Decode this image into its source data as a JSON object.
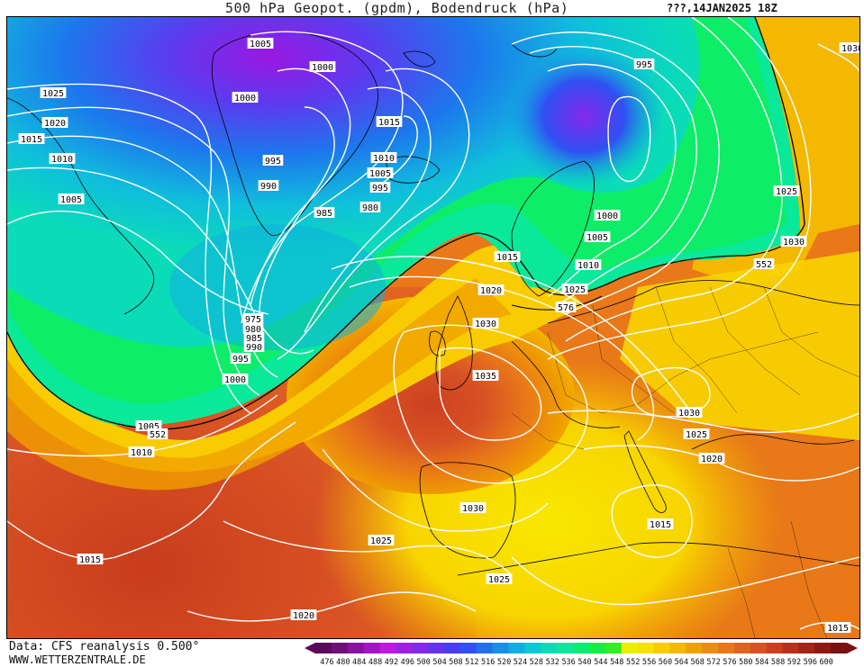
{
  "header": {
    "title": "500 hPa Geopot. (gpdm), Bodendruck (hPa)",
    "datetime": "???,14JAN2025 18Z"
  },
  "footer": {
    "data_source": "Data: CFS reanalysis 0.500°",
    "website": "WWW.WETTERZENTRALE.DE"
  },
  "colors": {
    "contour": "#ffffff",
    "coast": "#000000",
    "geopot_scale": [
      "#5a0a5a",
      "#6e0e78",
      "#8a10a0",
      "#a414c4",
      "#c018e0",
      "#a21ee6",
      "#8428ec",
      "#6632f0",
      "#4a3cf2",
      "#3050f2",
      "#2070ee",
      "#1890e8",
      "#10aee0",
      "#0ac8d4",
      "#0adcb8",
      "#0ae89a",
      "#08ec70",
      "#10f040",
      "#30f020",
      "#e8f000",
      "#f8e000",
      "#f8cc00",
      "#f4b800",
      "#f0a000",
      "#ec8c10",
      "#e87818",
      "#e06420",
      "#d85224",
      "#cc4020",
      "#b8301c",
      "#a42418",
      "#901814",
      "#7c1010"
    ]
  },
  "colorbar": {
    "ticks": [
      "476",
      "480",
      "484",
      "488",
      "492",
      "496",
      "500",
      "504",
      "508",
      "512",
      "516",
      "520",
      "524",
      "528",
      "532",
      "536",
      "540",
      "544",
      "548",
      "552",
      "556",
      "560",
      "564",
      "568",
      "572",
      "576",
      "580",
      "584",
      "588",
      "592",
      "596",
      "600"
    ]
  },
  "isobar_labels": [
    {
      "text": "1005"
    },
    {
      "text": "1000"
    },
    {
      "text": "1000"
    },
    {
      "text": "1015"
    },
    {
      "text": "1010"
    },
    {
      "text": "1005"
    },
    {
      "text": "995"
    },
    {
      "text": "995"
    },
    {
      "text": "990"
    },
    {
      "text": "985"
    },
    {
      "text": "980"
    },
    {
      "text": "1025"
    },
    {
      "text": "1020"
    },
    {
      "text": "1015"
    },
    {
      "text": "1010"
    },
    {
      "text": "1005"
    },
    {
      "text": "995"
    },
    {
      "text": "1000"
    },
    {
      "text": "1005"
    },
    {
      "text": "1010"
    },
    {
      "text": "1015"
    },
    {
      "text": "1020"
    },
    {
      "text": "1025"
    },
    {
      "text": "1030"
    },
    {
      "text": "1025"
    },
    {
      "text": "1030"
    },
    {
      "text": "552"
    },
    {
      "text": "576"
    },
    {
      "text": "975"
    },
    {
      "text": "980"
    },
    {
      "text": "985"
    },
    {
      "text": "990"
    },
    {
      "text": "995"
    },
    {
      "text": "1000"
    },
    {
      "text": "1005"
    },
    {
      "text": "552"
    },
    {
      "text": "1010"
    },
    {
      "text": "1035"
    },
    {
      "text": "1030"
    },
    {
      "text": "1025"
    },
    {
      "text": "1020"
    },
    {
      "text": "1030"
    },
    {
      "text": "1015"
    },
    {
      "text": "1025"
    },
    {
      "text": "1015"
    },
    {
      "text": "1025"
    },
    {
      "text": "1020"
    },
    {
      "text": "1015"
    },
    {
      "text": "1030"
    }
  ]
}
